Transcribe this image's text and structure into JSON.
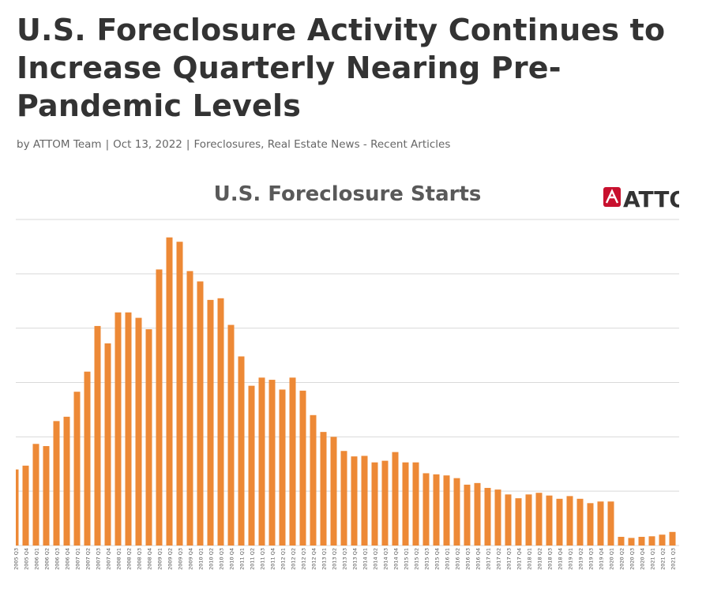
{
  "article": {
    "title": "U.S. Foreclosure Activity Continues to Increase Quarterly Nearing Pre-Pandemic Levels",
    "byline_prefix": "by",
    "author": "ATTOM Team",
    "date": "Oct 13, 2022",
    "categories": "Foreclosures, Real Estate News - Recent Articles"
  },
  "logo": {
    "text": "ATTOM",
    "color": "#c8102e",
    "text_color": "#333333"
  },
  "colors": {
    "bar": "#ed8936",
    "grid": "#d9d9d9",
    "tick_text": "#595959"
  },
  "chart_data": {
    "type": "bar",
    "title": "U.S. Foreclosure Starts",
    "xlabel": "",
    "ylabel": "",
    "grid": true,
    "legend": "none",
    "ylim": [
      0,
      6
    ],
    "categories": [
      "2005 Q3",
      "2005 Q4",
      "2006 Q1",
      "2006 Q2",
      "2006 Q3",
      "2006 Q4",
      "2007 Q1",
      "2007 Q2",
      "2007 Q3",
      "2007 Q4",
      "2008 Q1",
      "2008 Q2",
      "2008 Q3",
      "2008 Q4",
      "2009 Q1",
      "2009 Q2",
      "2009 Q3",
      "2009 Q4",
      "2010 Q1",
      "2010 Q2",
      "2010 Q3",
      "2010 Q4",
      "2011 Q1",
      "2011 Q2",
      "2011 Q3",
      "2011 Q4",
      "2012 Q1",
      "2012 Q2",
      "2012 Q3",
      "2012 Q4",
      "2013 Q1",
      "2013 Q2",
      "2013 Q3",
      "2013 Q4",
      "2014 Q1",
      "2014 Q2",
      "2014 Q3",
      "2014 Q4",
      "2015 Q1",
      "2015 Q2",
      "2015 Q3",
      "2015 Q4",
      "2016 Q1",
      "2016 Q2",
      "2016 Q3",
      "2016 Q4",
      "2017 Q1",
      "2017 Q2",
      "2017 Q3",
      "2017 Q4",
      "2018 Q1",
      "2018 Q2",
      "2018 Q3",
      "2018 Q4",
      "2019 Q1",
      "2019 Q2",
      "2019 Q3",
      "2019 Q4",
      "2020 Q1",
      "2020 Q2",
      "2020 Q3",
      "2020 Q4",
      "2021 Q1",
      "2021 Q2",
      "2021 Q3"
    ],
    "values": [
      1.4,
      1.47,
      1.87,
      1.83,
      2.29,
      2.37,
      2.83,
      3.2,
      4.04,
      3.72,
      4.29,
      4.29,
      4.19,
      3.98,
      5.08,
      5.67,
      5.59,
      5.05,
      4.86,
      4.52,
      4.55,
      4.06,
      3.48,
      2.94,
      3.09,
      3.05,
      2.87,
      3.09,
      2.85,
      2.4,
      2.09,
      2.0,
      1.74,
      1.64,
      1.65,
      1.53,
      1.56,
      1.72,
      1.53,
      1.53,
      1.33,
      1.31,
      1.29,
      1.24,
      1.12,
      1.15,
      1.06,
      1.03,
      0.94,
      0.87,
      0.94,
      0.97,
      0.92,
      0.86,
      0.91,
      0.86,
      0.78,
      0.81,
      0.81,
      0.16,
      0.14,
      0.16,
      0.17,
      0.2,
      0.25
    ]
  }
}
